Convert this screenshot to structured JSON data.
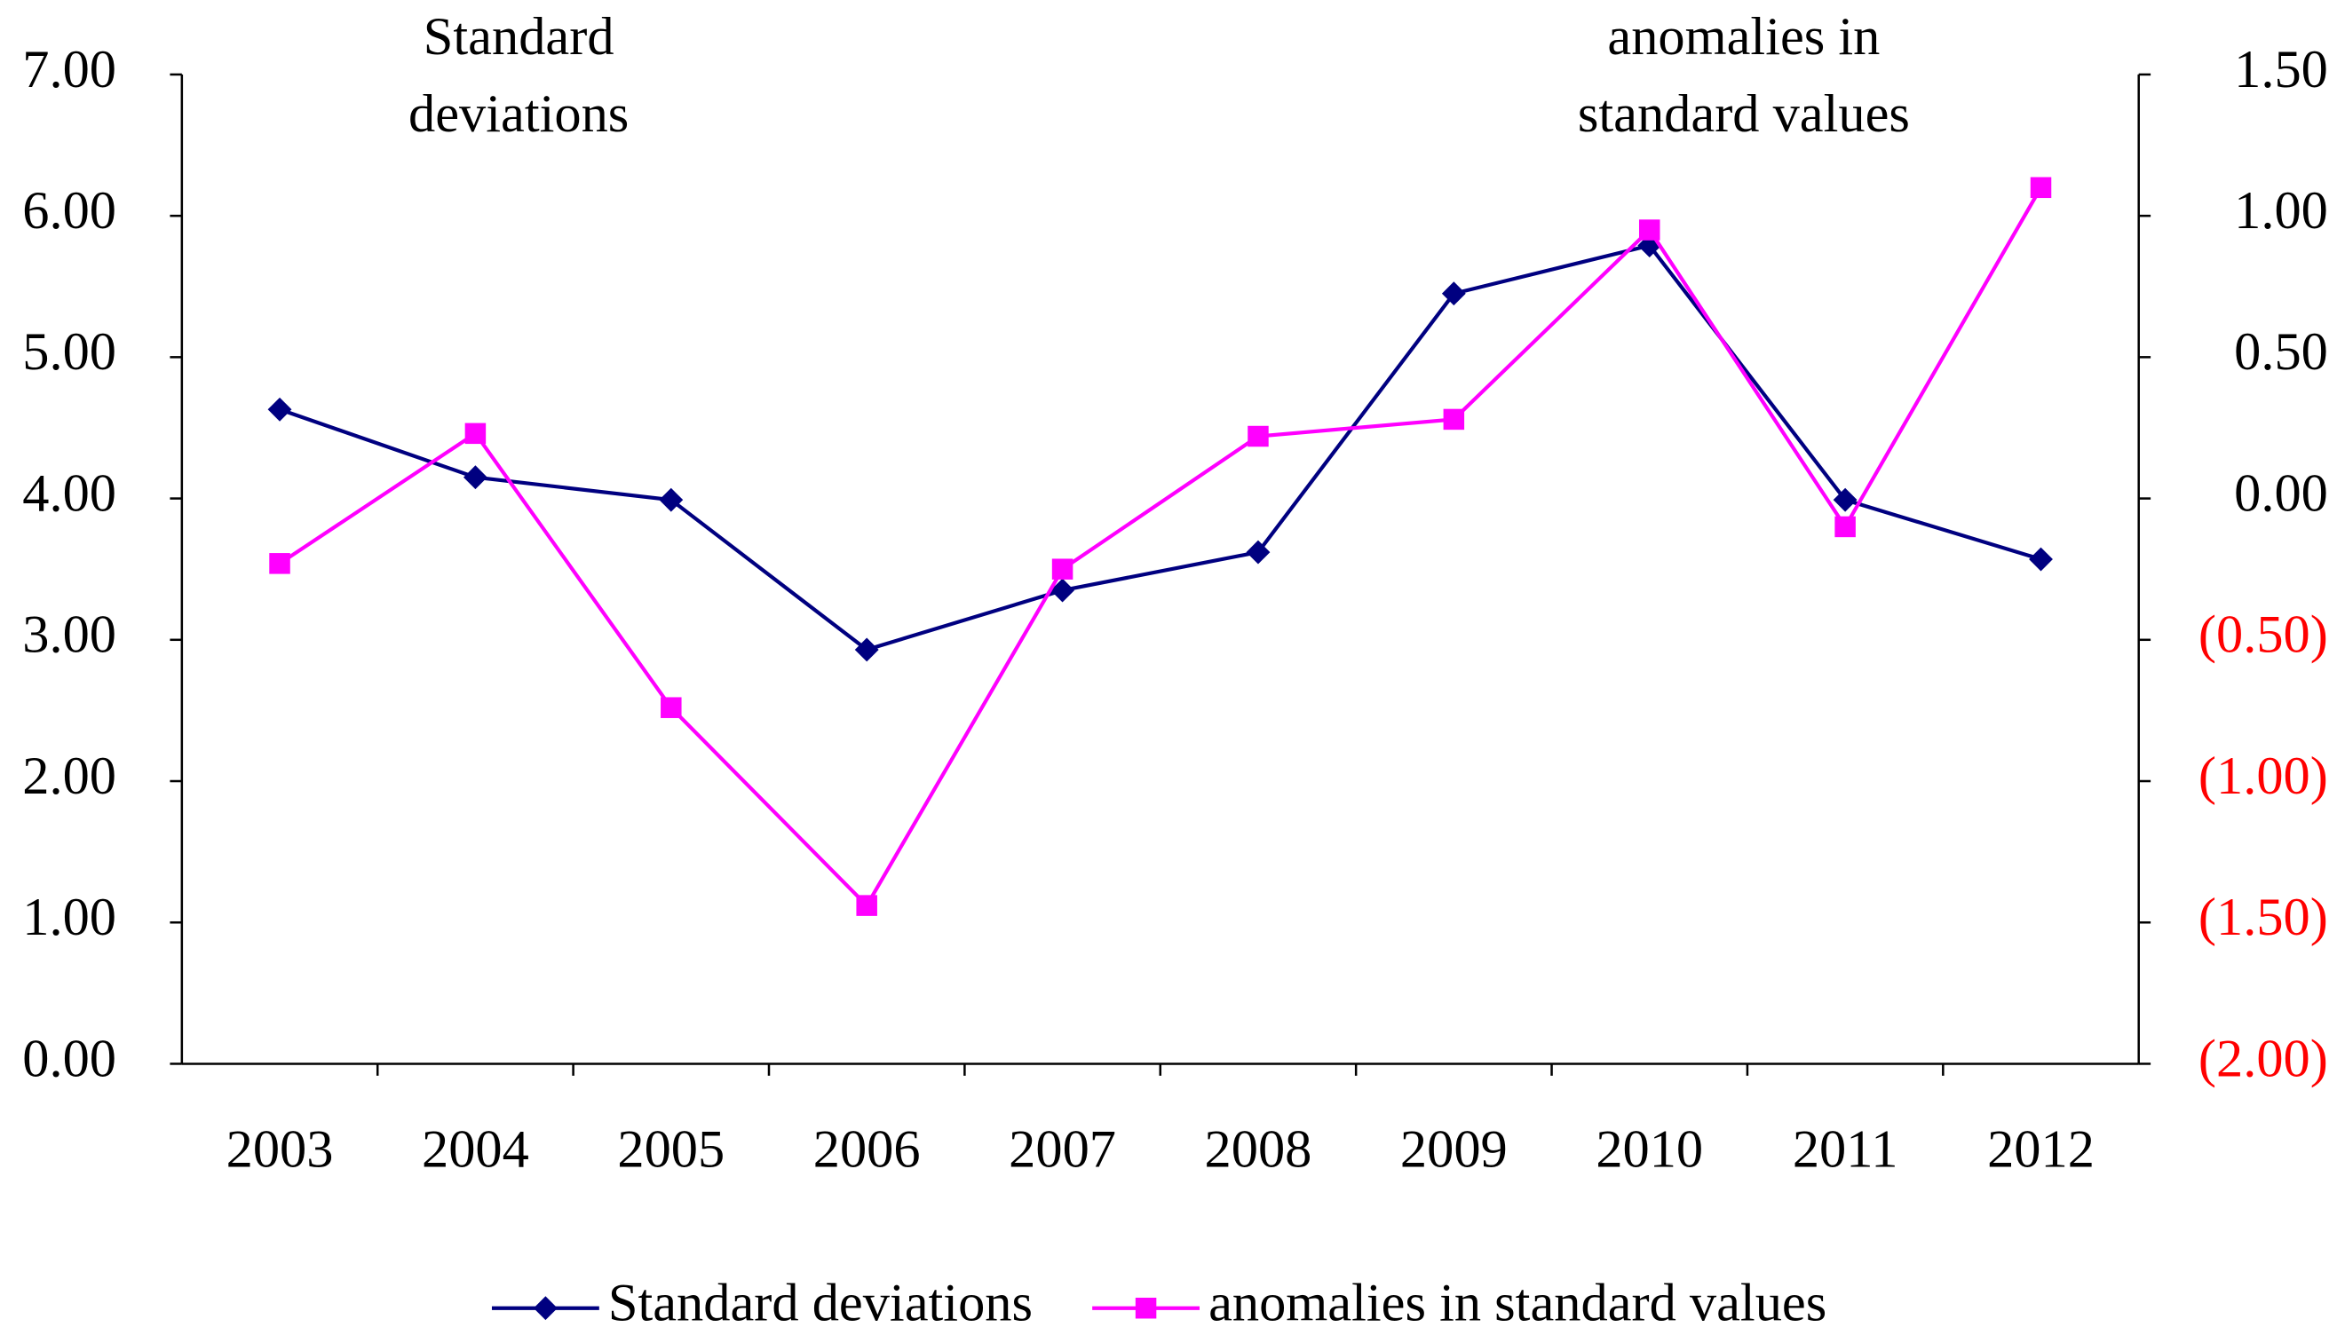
{
  "chart_data": {
    "type": "line",
    "annotations": [
      [
        "Standard",
        "deviations"
      ],
      [
        "anomalies in",
        "standard values"
      ]
    ],
    "categories": [
      "2003",
      "2004",
      "2005",
      "2006",
      "2007",
      "2008",
      "2009",
      "2010",
      "2011",
      "2012"
    ],
    "series": [
      {
        "name": "Standard deviations",
        "color": "#000080",
        "marker": "diamond",
        "values": [
          4.63,
          4.15,
          3.99,
          2.93,
          3.35,
          3.62,
          5.45,
          5.79,
          3.99,
          3.57
        ]
      },
      {
        "name": "anomalies in standard values",
        "color": "#ff00ff",
        "marker": "square",
        "axis": "y2",
        "values": [
          -0.23,
          0.23,
          -0.74,
          -1.44,
          -0.25,
          0.22,
          0.28,
          0.95,
          -0.1,
          1.1
        ]
      }
    ],
    "ylim": [
      0,
      7
    ],
    "yticks": [
      {
        "value": 0,
        "label": "0.00"
      },
      {
        "value": 1,
        "label": "1.00"
      },
      {
        "value": 2,
        "label": "2.00"
      },
      {
        "value": 3,
        "label": "3.00"
      },
      {
        "value": 4,
        "label": "4.00"
      },
      {
        "value": 5,
        "label": "5.00"
      },
      {
        "value": 6,
        "label": "6.00"
      },
      {
        "value": 7,
        "label": "7.00"
      }
    ],
    "y2lim": [
      -2,
      1.5
    ],
    "y2ticks": [
      {
        "value": -2,
        "label": "(2.00)"
      },
      {
        "value": -1.5,
        "label": "(1.50)"
      },
      {
        "value": -1,
        "label": "(1.00)"
      },
      {
        "value": -0.5,
        "label": "(0.50)"
      },
      {
        "value": 0,
        "label": "0.00"
      },
      {
        "value": 0.5,
        "label": "0.50"
      },
      {
        "value": 1,
        "label": "1.00"
      },
      {
        "value": 1.5,
        "label": "1.50"
      }
    ],
    "y2negative_color": "#ff0000",
    "legend": "bottom"
  }
}
